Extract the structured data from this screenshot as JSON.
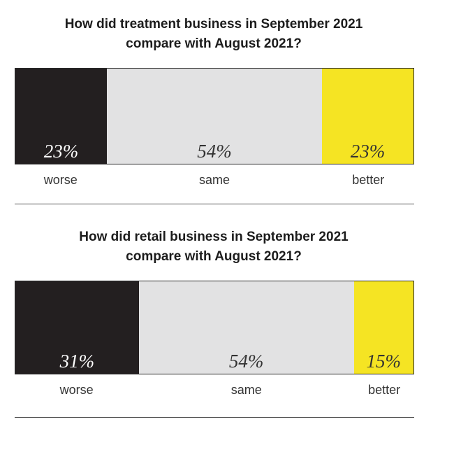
{
  "colors": {
    "worse": "#231f20",
    "same": "#e2e2e3",
    "better": "#f5e423",
    "worse_text": "#ffffff",
    "same_text": "#333333",
    "better_text": "#333333"
  },
  "chart_data": [
    {
      "type": "bar",
      "orientation": "horizontal-stacked-100",
      "title": "How did treatment business in September 2021 compare with August 2021?",
      "title_lines": [
        "How did treatment business in September 2021",
        "compare with August 2021?"
      ],
      "categories": [
        "worse",
        "same",
        "better"
      ],
      "values": [
        23,
        54,
        23
      ],
      "value_labels": [
        "23%",
        "54%",
        "23%"
      ],
      "unit": "%"
    },
    {
      "type": "bar",
      "orientation": "horizontal-stacked-100",
      "title": "How did retail business in September 2021 compare with August 2021?",
      "title_lines": [
        "How did retail business in September 2021",
        "compare with August 2021?"
      ],
      "categories": [
        "worse",
        "same",
        "better"
      ],
      "values": [
        31,
        54,
        15
      ],
      "value_labels": [
        "31%",
        "54%",
        "15%"
      ],
      "unit": "%"
    }
  ]
}
